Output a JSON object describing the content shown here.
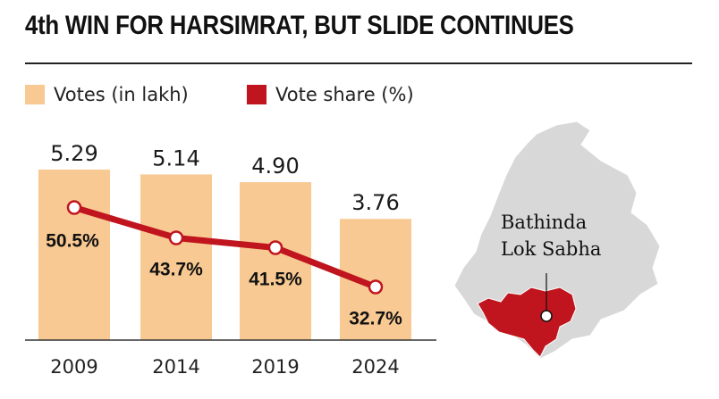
{
  "header": {
    "title": "4th WIN FOR HARSIMRAT, BUT SLIDE CONTINUES"
  },
  "legend": {
    "votes_label": "Votes (in lakh)",
    "share_label": "Vote share (%)"
  },
  "map": {
    "label_line1": "Bathinda",
    "label_line2": "Lok Sabha"
  },
  "colors": {
    "bar": "#f8c992",
    "line": "#c0151e",
    "map_base": "#d8d8d8",
    "map_highlight": "#c0151e"
  },
  "chart_data": {
    "type": "bar",
    "categories": [
      "2009",
      "2014",
      "2019",
      "2024"
    ],
    "values": [
      5.29,
      5.14,
      4.9,
      3.76
    ],
    "value_labels": [
      "5.29",
      "5.14",
      "4.90",
      "3.76"
    ],
    "series": [
      {
        "name": "Votes (in lakh)",
        "type": "bar",
        "values": [
          5.29,
          5.14,
          4.9,
          3.76
        ]
      },
      {
        "name": "Vote share (%)",
        "type": "line",
        "values": [
          50.5,
          43.7,
          41.5,
          32.7
        ]
      }
    ],
    "share_labels": [
      "50.5%",
      "43.7%",
      "41.5%",
      "32.7%"
    ],
    "title": "4th WIN FOR HARSIMRAT, BUT SLIDE CONTINUES",
    "xlabel": "",
    "ylabel": "",
    "ylim": [
      0,
      5.29
    ],
    "y2lim": [
      30,
      53
    ],
    "grid": false,
    "legend_position": "top-left"
  }
}
